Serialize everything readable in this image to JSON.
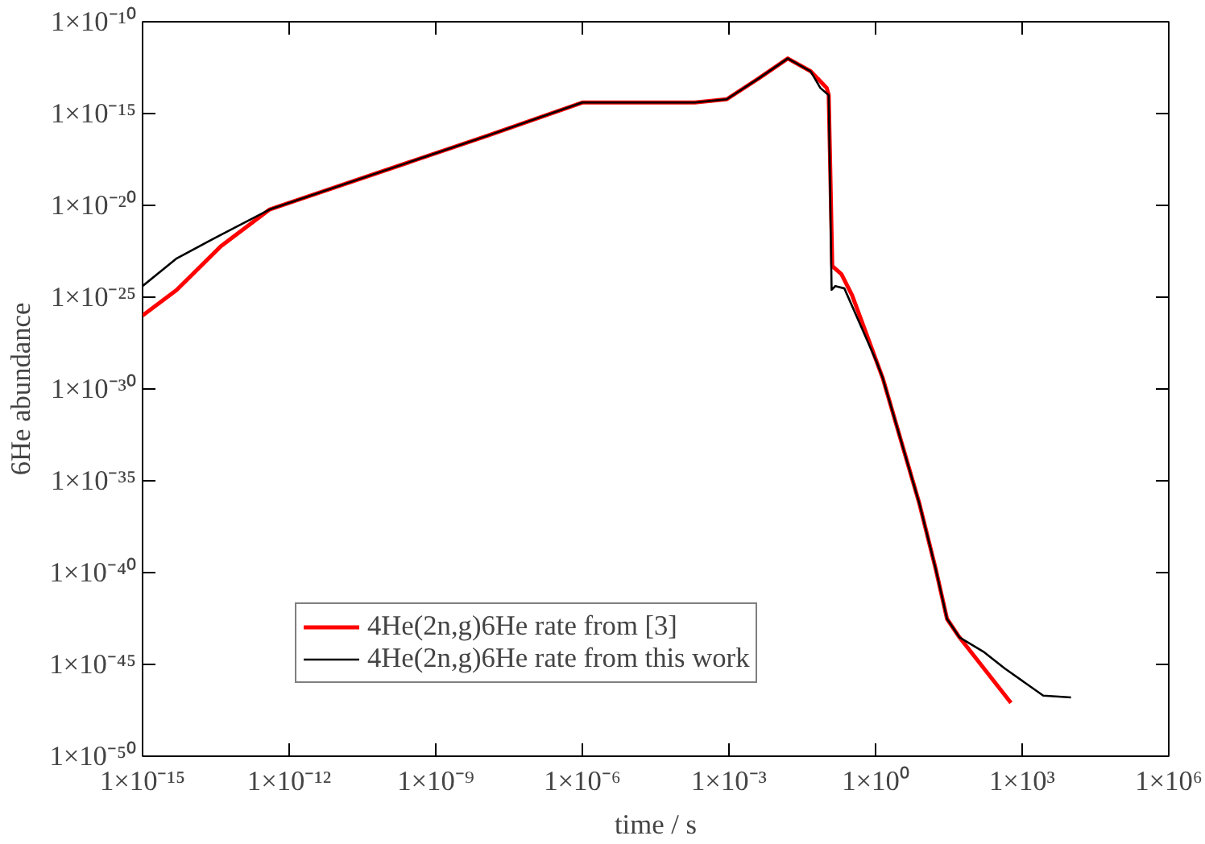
{
  "chart_data": {
    "type": "line",
    "xlabel": "time / s",
    "ylabel": "6He abundance",
    "log": "xy",
    "grid": false,
    "legend": "bottom left",
    "xlim": [
      1e-15,
      1000000.0
    ],
    "ylim": [
      1e-50,
      1e-10
    ],
    "xticks": [
      {
        "value": 1e-15,
        "label": "1×10⁻¹⁵"
      },
      {
        "value": 1e-12,
        "label": "1×10⁻¹²"
      },
      {
        "value": 1e-09,
        "label": "1×10⁻⁹"
      },
      {
        "value": 1e-06,
        "label": "1×10⁻⁶"
      },
      {
        "value": 0.001,
        "label": "1×10⁻³"
      },
      {
        "value": 1,
        "label": "1×10⁰"
      },
      {
        "value": 1000.0,
        "label": "1×10³"
      },
      {
        "value": 1000000.0,
        "label": "1×10⁶"
      }
    ],
    "yticks": [
      {
        "value": 1e-50,
        "label": "1×10⁻⁵⁰"
      },
      {
        "value": 1e-45,
        "label": "1×10⁻⁴⁵"
      },
      {
        "value": 1e-40,
        "label": "1×10⁻⁴⁰"
      },
      {
        "value": 1e-35,
        "label": "1×10⁻³⁵"
      },
      {
        "value": 1e-30,
        "label": "1×10⁻³⁰"
      },
      {
        "value": 1e-25,
        "label": "1×10⁻²⁵"
      },
      {
        "value": 1e-20,
        "label": "1×10⁻²⁰"
      },
      {
        "value": 1e-15,
        "label": "1×10⁻¹⁵"
      },
      {
        "value": 1e-10,
        "label": "1×10⁻¹⁰"
      }
    ],
    "series": [
      {
        "name": "4He(2n,g)6He rate from [3]",
        "color": "#ff0000",
        "x": [
          1e-15,
          5e-15,
          4e-14,
          4e-13,
          1.1e-08,
          1e-06,
          0.0002,
          0.0009,
          0.004,
          0.016,
          0.047,
          0.1,
          0.11,
          0.13,
          0.2,
          0.33,
          1.4,
          7.9,
          17,
          29,
          52,
          590
        ],
        "values": [
          1e-26,
          2.5e-25,
          6e-23,
          6e-21,
          6e-17,
          4e-15,
          4e-15,
          6e-15,
          8e-14,
          1e-12,
          2e-13,
          2.5e-14,
          1e-14,
          5e-24,
          1.8e-24,
          1.3e-25,
          4e-30,
          5.6e-37,
          1.6e-40,
          3e-43,
          3e-44,
          8e-48
        ]
      },
      {
        "name": "4He(2n,g)6He rate from this work",
        "color": "#000000",
        "x": [
          1e-15,
          5e-15,
          4e-14,
          4e-13,
          1.1e-08,
          1e-06,
          0.0002,
          0.0009,
          0.004,
          0.016,
          0.047,
          0.074,
          0.11,
          0.126,
          0.15,
          0.23,
          1.05,
          1.4,
          7.9,
          17,
          29,
          52,
          160,
          440,
          2700,
          10000.0
        ],
        "values": [
          4e-25,
          1.3e-23,
          2.5e-22,
          6e-21,
          6e-17,
          4e-15,
          4e-15,
          6e-15,
          8e-14,
          1e-12,
          2e-13,
          2.5e-14,
          1e-14,
          2.5e-25,
          4e-25,
          3e-25,
          3e-29,
          4e-30,
          5.6e-37,
          1.6e-40,
          3e-43,
          3e-44,
          5e-45,
          6e-46,
          2e-47,
          1.6e-47
        ]
      }
    ]
  }
}
